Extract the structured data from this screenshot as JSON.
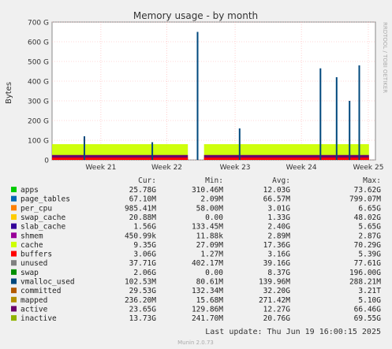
{
  "chart_data": {
    "type": "area",
    "title": "Memory usage - by month",
    "ylabel": "Bytes",
    "side_label": "RRDTOOL / TOBI OETIKER",
    "ylim": [
      0,
      700
    ],
    "y_unit": "G",
    "yticks": [
      "0",
      "100 G",
      "200 G",
      "300 G",
      "400 G",
      "500 G",
      "600 G",
      "700 G"
    ],
    "x_ticks": [
      "Week 21",
      "Week 22",
      "Week 23",
      "Week 24",
      "Week 25"
    ],
    "grid": true,
    "columns": [
      "Cur:",
      "Min:",
      "Avg:",
      "Max:"
    ],
    "legend": [
      {
        "name": "apps",
        "color": "#00cc00",
        "cur": "25.78G",
        "min": "310.46M",
        "avg": "12.03G",
        "max": "73.62G"
      },
      {
        "name": "page_tables",
        "color": "#0066b3",
        "cur": "67.10M",
        "min": "2.09M",
        "avg": "66.57M",
        "max": "799.07M"
      },
      {
        "name": "per_cpu",
        "color": "#ff8000",
        "cur": "985.41M",
        "min": "58.00M",
        "avg": "3.01G",
        "max": "6.65G"
      },
      {
        "name": "swap_cache",
        "color": "#ffcc00",
        "cur": "20.88M",
        "min": "0.00",
        "avg": "1.33G",
        "max": "48.02G"
      },
      {
        "name": "slab_cache",
        "color": "#330099",
        "cur": "1.56G",
        "min": "133.45M",
        "avg": "2.40G",
        "max": "5.65G"
      },
      {
        "name": "shmem",
        "color": "#990099",
        "cur": "450.99k",
        "min": "11.88k",
        "avg": "2.89M",
        "max": "2.87G"
      },
      {
        "name": "cache",
        "color": "#ccff00",
        "cur": "9.35G",
        "min": "27.09M",
        "avg": "17.36G",
        "max": "70.29G"
      },
      {
        "name": "buffers",
        "color": "#ff0000",
        "cur": "3.06G",
        "min": "1.27M",
        "avg": "3.16G",
        "max": "5.39G"
      },
      {
        "name": "unused",
        "color": "#808080",
        "cur": "37.71G",
        "min": "402.17M",
        "avg": "39.16G",
        "max": "77.61G"
      },
      {
        "name": "swap",
        "color": "#008f00",
        "cur": "2.06G",
        "min": "0.00",
        "avg": "8.37G",
        "max": "196.00G"
      },
      {
        "name": "vmalloc_used",
        "color": "#00487d",
        "cur": "102.53M",
        "min": "80.61M",
        "avg": "139.96M",
        "max": "288.21M"
      },
      {
        "name": "committed",
        "color": "#b35a00",
        "cur": "29.53G",
        "min": "132.34M",
        "avg": "32.20G",
        "max": "3.21T"
      },
      {
        "name": "mapped",
        "color": "#b38f00",
        "cur": "236.20M",
        "min": "15.68M",
        "avg": "271.42M",
        "max": "5.10G"
      },
      {
        "name": "active",
        "color": "#6b006b",
        "cur": "23.65G",
        "min": "129.86M",
        "avg": "12.27G",
        "max": "66.46G"
      },
      {
        "name": "inactive",
        "color": "#8fb300",
        "cur": "13.73G",
        "min": "241.70M",
        "avg": "20.76G",
        "max": "69.55G"
      }
    ],
    "series": [
      {
        "name": "committed",
        "color": "#00487d",
        "spikes": [
          {
            "x": 0.45,
            "v": 650
          },
          {
            "x": 0.95,
            "v": 480
          },
          {
            "x": 0.83,
            "v": 465
          },
          {
            "x": 0.88,
            "v": 420
          },
          {
            "x": 0.92,
            "v": 300
          },
          {
            "x": 0.31,
            "v": 90
          },
          {
            "x": 0.58,
            "v": 160
          },
          {
            "x": 0.1,
            "v": 120
          }
        ]
      },
      {
        "name": "unused",
        "color": "#ccff00",
        "level": 80
      }
    ],
    "last_update": "Last update: Thu Jun 19 16:00:15 2025",
    "footer": "Munin 2.0.73"
  }
}
